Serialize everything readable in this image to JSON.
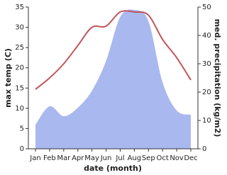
{
  "chart_data": {
    "type": "line",
    "xlabel": "date (month)",
    "ylabel": "max temp (C)",
    "y2label": "med. precipitation (kg/m2)",
    "categories": [
      "Jan",
      "Feb",
      "Mar",
      "Apr",
      "May",
      "Jun",
      "Jul",
      "Aug",
      "Sep",
      "Oct",
      "Nov",
      "Dec"
    ],
    "series": [
      {
        "name": "max temp",
        "color": "#c0565b",
        "style": "line",
        "values": [
          14.7,
          17.5,
          21,
          25.5,
          30,
          30.3,
          33.8,
          33.8,
          33,
          27,
          22.5,
          17
        ]
      },
      {
        "name": "med. precipitation",
        "color": "#aab8f0",
        "style": "area",
        "axis": "y2",
        "values": [
          8.5,
          15,
          11.5,
          14.5,
          20.5,
          31,
          46.5,
          49,
          45,
          23.5,
          13.5,
          12
        ]
      }
    ],
    "ylim": [
      0,
      35
    ],
    "yticks": [
      0,
      5,
      10,
      15,
      20,
      25,
      30,
      35
    ],
    "y2lim": [
      0,
      50
    ],
    "y2ticks": [
      0,
      10,
      20,
      30,
      40,
      50
    ]
  }
}
